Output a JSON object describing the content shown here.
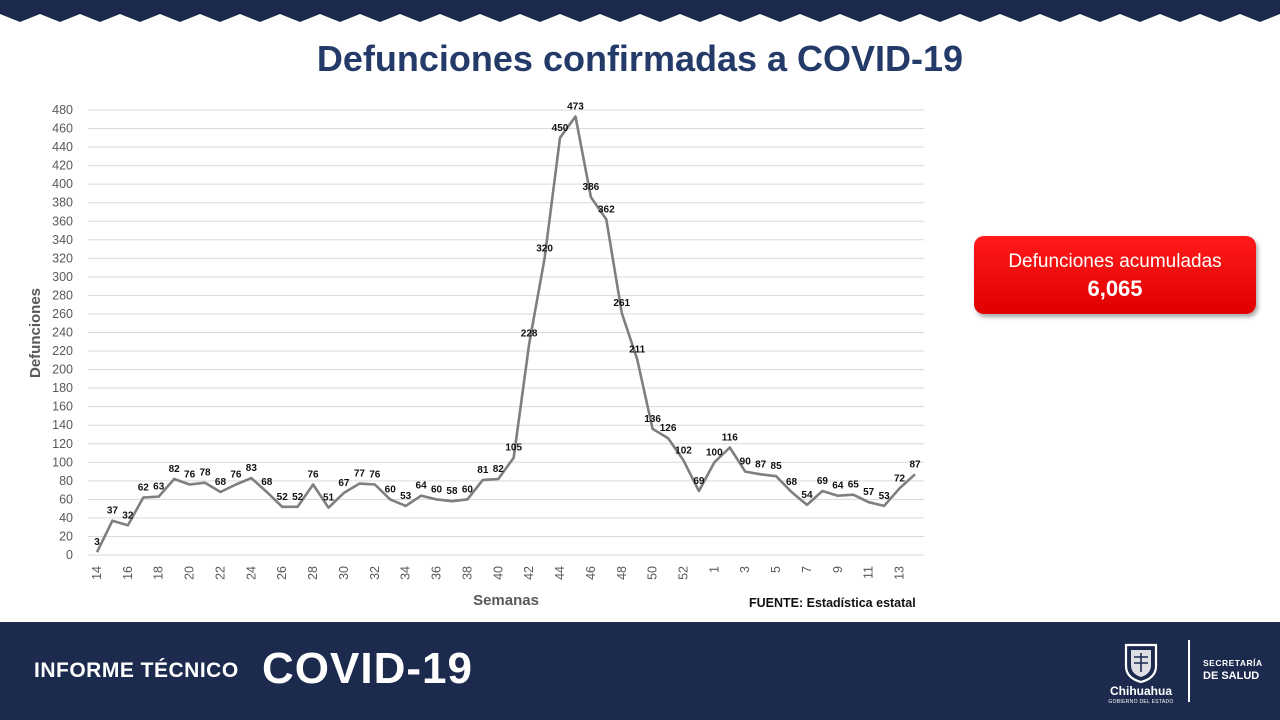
{
  "slide": {
    "title": "Defunciones confirmadas a COVID-19",
    "source": "FUENTE: Estadística estatal"
  },
  "total": {
    "label": "Defunciones acumuladas",
    "value": "6,065",
    "color": "#ff0000"
  },
  "footer": {
    "label": "INFORME TÉCNICO",
    "brand": "COVID-19",
    "city": "Chihuahua",
    "gov": "GOBIERNO DEL ESTADO",
    "dept_line1": "SECRETARÍA",
    "dept_line2": "DE SALUD",
    "color": "#1c2a4e"
  },
  "chart_data": {
    "type": "line",
    "title": "Defunciones confirmadas a COVID-19",
    "xlabel": "Semanas",
    "ylabel": "Defunciones",
    "ylim": [
      0,
      480
    ],
    "ytick_step": 20,
    "grid": true,
    "line_color": "#7f7f7f",
    "x": [
      "14",
      "15",
      "16",
      "17",
      "18",
      "19",
      "20",
      "21",
      "22",
      "23",
      "24",
      "25",
      "26",
      "27",
      "28",
      "29",
      "30",
      "31",
      "32",
      "33",
      "34",
      "35",
      "36",
      "37",
      "38",
      "39",
      "40",
      "41",
      "42",
      "43",
      "44",
      "45",
      "46",
      "47",
      "48",
      "49",
      "50",
      "51",
      "52",
      "53",
      "1",
      "2",
      "3",
      "4",
      "5",
      "6",
      "7",
      "8",
      "9",
      "10",
      "11",
      "12",
      "13",
      "14"
    ],
    "x_tick_labels": [
      "14",
      "16",
      "18",
      "20",
      "22",
      "24",
      "26",
      "28",
      "30",
      "32",
      "34",
      "36",
      "38",
      "40",
      "42",
      "44",
      "46",
      "48",
      "50",
      "52",
      "1",
      "3",
      "5",
      "7",
      "9",
      "11",
      "13"
    ],
    "series": [
      {
        "values": [
          3,
          37,
          32,
          62,
          63,
          82,
          76,
          78,
          68,
          76,
          83,
          68,
          52,
          52,
          76,
          51,
          67,
          77,
          76,
          60,
          53,
          64,
          60,
          58,
          60,
          81,
          82,
          105,
          228,
          320,
          450,
          473,
          386,
          362,
          261,
          211,
          136,
          126,
          102,
          69,
          100,
          116,
          90,
          87,
          85,
          68,
          54,
          69,
          64,
          65,
          57,
          53,
          72,
          87
        ],
        "data_labels": [
          "3",
          "37",
          "32",
          "62",
          "63",
          "82",
          "76",
          "78",
          "68",
          "76",
          "83",
          "68",
          "52",
          "52",
          "76",
          "51",
          "67",
          "77",
          "76",
          "60",
          "53",
          "64",
          "60",
          "58",
          "60",
          "81",
          "82",
          "105",
          "228",
          "320",
          "450",
          "473",
          "386",
          "362",
          "261",
          "211",
          "136",
          "126",
          "102",
          "69",
          "100",
          "116",
          "90",
          "87",
          "85",
          "68",
          "54",
          "69",
          "64",
          "65",
          "57",
          "53",
          "72",
          "87"
        ]
      }
    ]
  }
}
